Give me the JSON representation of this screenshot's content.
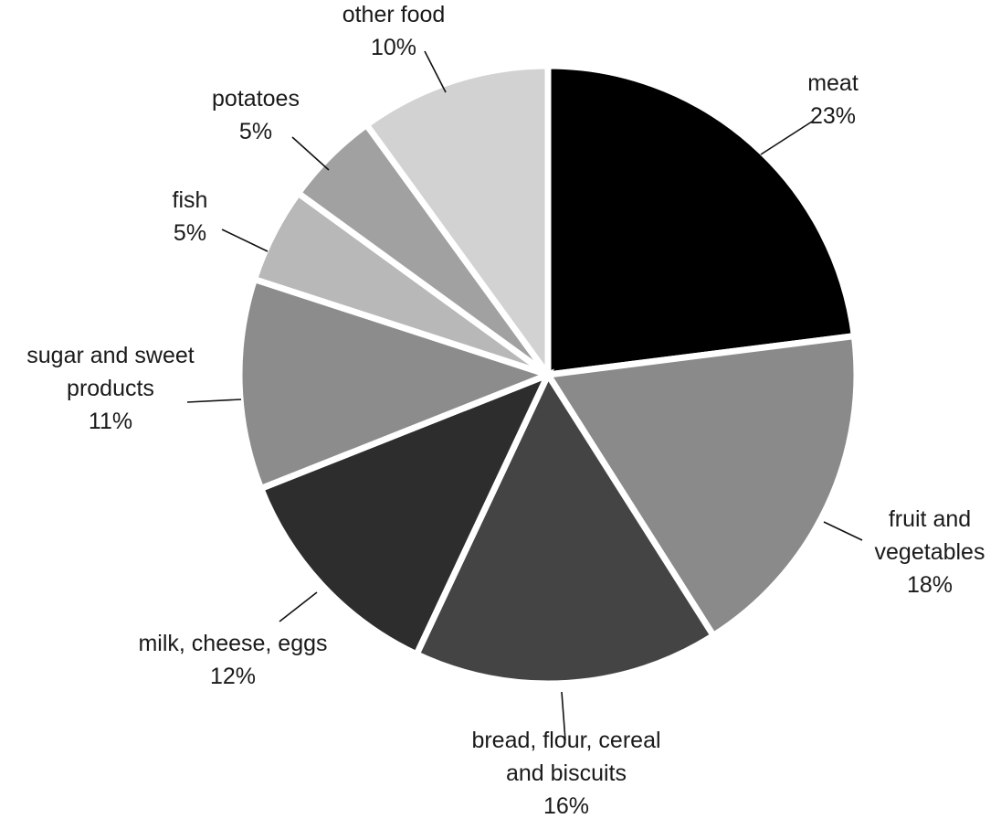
{
  "chart_data": {
    "type": "pie",
    "title": "",
    "start": "12 o'clock",
    "direction": "clockwise",
    "slices": [
      {
        "name": "meat",
        "label_lines": [
          "meat",
          "23%"
        ],
        "value": 23,
        "color": "#000000"
      },
      {
        "name": "fruit and vegetables",
        "label_lines": [
          "fruit and",
          "vegetables",
          "18%"
        ],
        "value": 18,
        "color": "#8a8a8a"
      },
      {
        "name": "bread, flour, cereal and biscuits",
        "label_lines": [
          "bread, flour, cereal",
          "and biscuits",
          "16%"
        ],
        "value": 16,
        "color": "#444444"
      },
      {
        "name": "milk, cheese, eggs",
        "label_lines": [
          "milk, cheese, eggs",
          "12%"
        ],
        "value": 12,
        "color": "#2d2d2d"
      },
      {
        "name": "sugar and sweet products",
        "label_lines": [
          "sugar and sweet",
          "products",
          "11%"
        ],
        "value": 11,
        "color": "#8c8c8c"
      },
      {
        "name": "fish",
        "label_lines": [
          "fish",
          "5%"
        ],
        "value": 5,
        "color": "#b8b8b8"
      },
      {
        "name": "potatoes",
        "label_lines": [
          "potatoes",
          "5%"
        ],
        "value": 5,
        "color": "#a1a1a1"
      },
      {
        "name": "other food",
        "label_lines": [
          "other food",
          "10%"
        ],
        "value": 10,
        "color": "#d2d2d2"
      }
    ]
  }
}
